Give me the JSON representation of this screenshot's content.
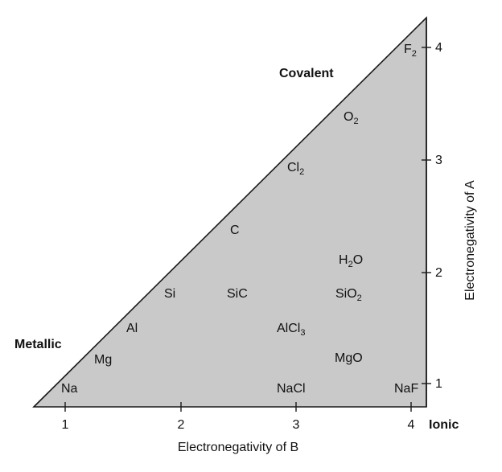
{
  "corner_labels": {
    "covalent": "Covalent",
    "metallic": "Metallic",
    "ionic": "Ionic"
  },
  "axes": {
    "x_title": "Electronegativity of B",
    "y_title": "Electronegativity of A",
    "x_ticks": [
      "1",
      "2",
      "3",
      "4"
    ],
    "y_ticks": [
      "1",
      "2",
      "3",
      "4"
    ]
  },
  "compounds": [
    {
      "id": "na",
      "base": "Na"
    },
    {
      "id": "mg",
      "base": "Mg"
    },
    {
      "id": "al",
      "base": "Al"
    },
    {
      "id": "si",
      "base": "Si"
    },
    {
      "id": "sic",
      "base": "SiC"
    },
    {
      "id": "c",
      "base": "C"
    },
    {
      "id": "cl2",
      "base": "Cl",
      "sub": "2"
    },
    {
      "id": "o2",
      "base": "O",
      "sub": "2"
    },
    {
      "id": "f2",
      "base": "F",
      "sub": "2"
    },
    {
      "id": "h2o",
      "base": "H",
      "sub": "2",
      "tail": "O"
    },
    {
      "id": "sio2",
      "base": "SiO",
      "sub": "2"
    },
    {
      "id": "alcl3",
      "base": "AlCl",
      "sub": "3"
    },
    {
      "id": "mgo",
      "base": "MgO"
    },
    {
      "id": "nacl",
      "base": "NaCl"
    },
    {
      "id": "naf",
      "base": "NaF"
    }
  ],
  "colors": {
    "fill": "#c9c9c9",
    "stroke": "#1a1a1a"
  }
}
